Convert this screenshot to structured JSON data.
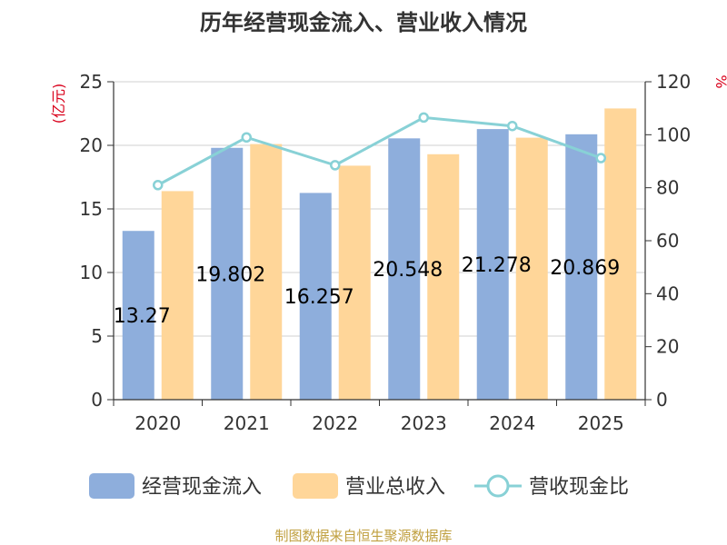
{
  "colors": {
    "cash_bar": "#8eaedc",
    "revenue_bar": "#ffd699",
    "ratio_line": "#88d1d6",
    "left_unit": "#d9001b",
    "right_unit": "#d9001b",
    "source": "#c0a040"
  },
  "chart_data": {
    "type": "bar",
    "title": "历年经营现金流入、营业收入情况",
    "categories": [
      "2020",
      "2021",
      "2022",
      "2023",
      "2024",
      "2025"
    ],
    "series": [
      {
        "name": "经营现金流入",
        "type": "bar",
        "axis": "left",
        "values": [
          13.27,
          19.802,
          16.257,
          20.548,
          21.278,
          20.869
        ],
        "labels": [
          "13.27",
          "19.802",
          "16.257",
          "20.548",
          "21.278",
          "20.869"
        ]
      },
      {
        "name": "营业总收入",
        "type": "bar",
        "axis": "left",
        "values": [
          16.4,
          20.1,
          18.4,
          19.3,
          20.6,
          22.9
        ]
      },
      {
        "name": "营收现金比",
        "type": "line",
        "axis": "right",
        "values": [
          81,
          99,
          88.5,
          106.5,
          103.3,
          91.2
        ]
      }
    ],
    "y_left": {
      "label": "(亿元)",
      "min": 0,
      "max": 25,
      "ticks": [
        0,
        5,
        10,
        15,
        20,
        25
      ]
    },
    "y_right": {
      "label": "%",
      "min": 0,
      "max": 120,
      "ticks": [
        0,
        20,
        40,
        60,
        80,
        100,
        120
      ]
    },
    "grid": true,
    "legend_position": "bottom"
  },
  "source_text": "制图数据来自恒生聚源数据库"
}
